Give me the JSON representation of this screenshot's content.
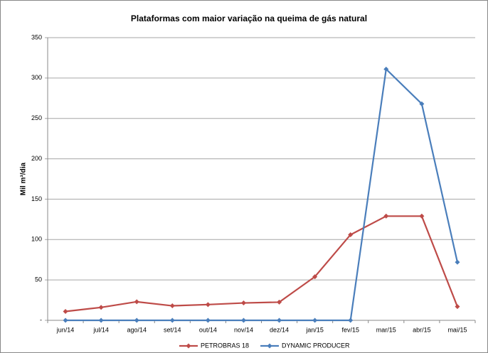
{
  "chart_data": {
    "type": "line",
    "title": "Plataformas com maior variação na queima de gás natural",
    "y_label": "Mil m³/dia",
    "categories": [
      "jun/14",
      "jul/14",
      "ago/14",
      "set/14",
      "out/14",
      "nov/14",
      "dez/14",
      "jan/15",
      "fev/15",
      "mar/15",
      "abr/15",
      "mai/15"
    ],
    "series": [
      {
        "name": "PETROBRAS 18",
        "color": "#be4b48",
        "values": [
          11,
          16,
          23,
          18,
          19.5,
          21.5,
          22.5,
          54,
          106,
          129,
          129,
          17
        ]
      },
      {
        "name": "DYNAMIC PRODUCER",
        "color": "#4a7ebb",
        "values": [
          0,
          0,
          0,
          0,
          0,
          0,
          0,
          0,
          0,
          311,
          268,
          72
        ]
      }
    ],
    "ylim": [
      0,
      350
    ],
    "yticks": [
      {
        "value": 0,
        "label": "-"
      },
      50,
      100,
      150,
      200,
      250,
      300,
      350
    ],
    "legend": "bottom"
  }
}
